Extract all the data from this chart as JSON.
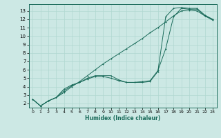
{
  "xlabel": "Humidex (Indice chaleur)",
  "xlim": [
    -0.5,
    23.5
  ],
  "ylim": [
    1.5,
    13.8
  ],
  "xticks": [
    0,
    1,
    2,
    3,
    4,
    5,
    6,
    7,
    8,
    9,
    10,
    11,
    12,
    13,
    14,
    15,
    16,
    17,
    18,
    19,
    20,
    21,
    22,
    23
  ],
  "yticks": [
    2,
    3,
    4,
    5,
    6,
    7,
    8,
    9,
    10,
    11,
    12,
    13
  ],
  "bg_color": "#cce8e4",
  "grid_color": "#b0d8d0",
  "line_color": "#1a6b5a",
  "line1_x": [
    0,
    1,
    2,
    3,
    4,
    5,
    6,
    7,
    8,
    9,
    10,
    11,
    12,
    13,
    14,
    15,
    16,
    17,
    18,
    19,
    20,
    21,
    22,
    23
  ],
  "line1_y": [
    2.5,
    1.7,
    2.3,
    2.7,
    3.7,
    4.2,
    4.5,
    5.0,
    5.3,
    5.3,
    5.3,
    4.8,
    4.5,
    4.5,
    4.5,
    4.6,
    5.8,
    12.3,
    13.3,
    13.4,
    13.3,
    13.3,
    12.5,
    12.0
  ],
  "line2_x": [
    0,
    1,
    2,
    3,
    4,
    5,
    6,
    7,
    8,
    9,
    10,
    11,
    12,
    13,
    14,
    15,
    16,
    17,
    18,
    19,
    20,
    21,
    22,
    23
  ],
  "line2_y": [
    2.5,
    1.7,
    2.3,
    2.7,
    3.3,
    4.0,
    4.6,
    5.3,
    6.0,
    6.7,
    7.3,
    7.9,
    8.5,
    9.1,
    9.7,
    10.4,
    11.0,
    11.7,
    12.4,
    13.0,
    13.1,
    13.0,
    12.4,
    11.9
  ],
  "line3_x": [
    0,
    1,
    2,
    3,
    4,
    5,
    6,
    7,
    8,
    9,
    10,
    11,
    12,
    13,
    14,
    15,
    16,
    17,
    18,
    19,
    20,
    21,
    22,
    23
  ],
  "line3_y": [
    2.5,
    1.7,
    2.3,
    2.7,
    3.5,
    4.1,
    4.5,
    4.9,
    5.2,
    5.2,
    5.0,
    4.7,
    4.5,
    4.5,
    4.6,
    4.7,
    5.9,
    8.5,
    12.3,
    13.3,
    13.2,
    13.2,
    12.4,
    12.0
  ]
}
